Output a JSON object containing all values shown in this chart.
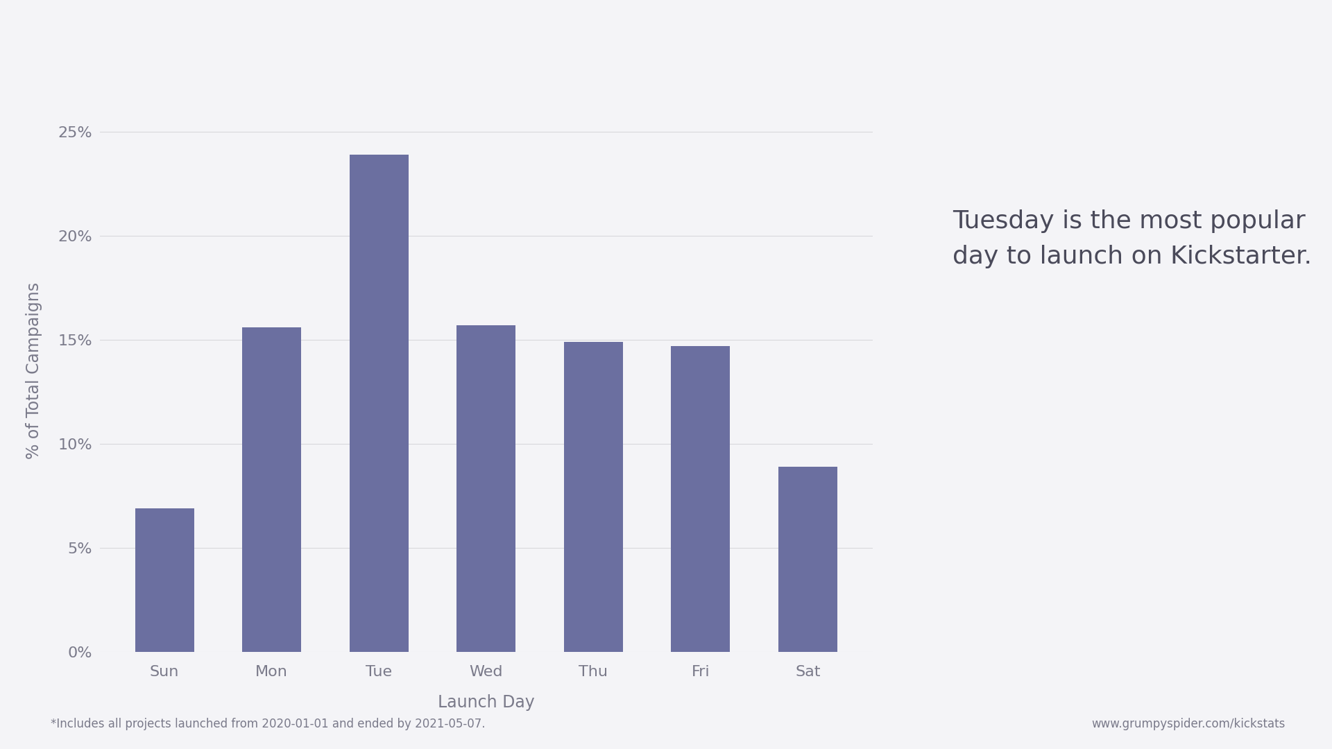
{
  "categories": [
    "Sun",
    "Mon",
    "Tue",
    "Wed",
    "Thu",
    "Fri",
    "Sat"
  ],
  "values": [
    0.069,
    0.156,
    0.239,
    0.157,
    0.149,
    0.147,
    0.089
  ],
  "bar_color": "#6b6fa0",
  "background_color": "#f4f4f7",
  "ylabel": "% of Total Campaigns",
  "xlabel": "Launch Day",
  "ylim": [
    0,
    0.27
  ],
  "yticks": [
    0.0,
    0.05,
    0.1,
    0.15,
    0.2,
    0.25
  ],
  "annotation": "Tuesday is the most popular\nday to launch on Kickstarter.",
  "footnote": "*Includes all projects launched from 2020-01-01 and ended by 2021-05-07.",
  "url": "www.grumpyspider.com/kickstats",
  "label_color": "#7a7a8a",
  "annotation_color": "#4a4a5a",
  "grid_color": "#d8d8dc",
  "tick_fontsize": 16,
  "axis_label_fontsize": 17,
  "annotation_fontsize": 26,
  "footnote_fontsize": 12
}
